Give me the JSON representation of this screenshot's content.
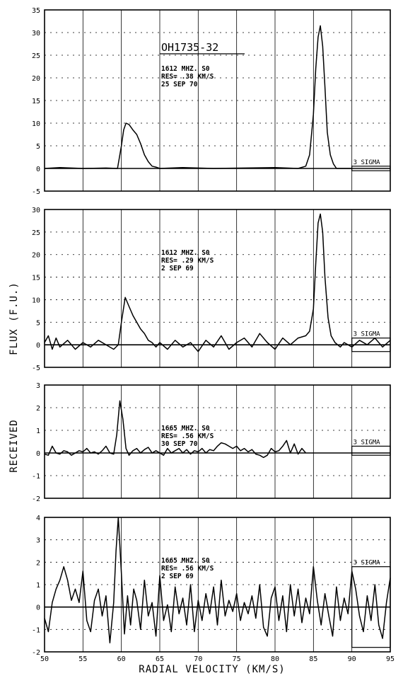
{
  "figure": {
    "xlabel": "RADIAL VELOCITY (KM/S)",
    "ylabel_parts": [
      "RECEIVED",
      "FLUX (F.U.)"
    ]
  },
  "chart_data": [
    {
      "type": "line",
      "source_label": "OH1735-32",
      "annotation_lines": [
        "1612 MHZ. S0",
        "RES= .38 KM/S",
        "25 SEP 70"
      ],
      "sigma_label": "3 SIGMA",
      "sigma_range": [
        -0.5,
        0.5
      ],
      "xlim": [
        50,
        95
      ],
      "ylim": [
        -5,
        35
      ],
      "xticks": [
        50,
        55,
        60,
        65,
        70,
        75,
        80,
        85,
        90,
        95
      ],
      "yticks": [
        -5,
        0,
        5,
        10,
        15,
        20,
        25,
        30,
        35
      ],
      "series": [
        {
          "x": [
            50,
            52,
            55,
            58,
            59.5,
            60,
            60.3,
            60.6,
            61,
            61.5,
            62,
            62.5,
            63,
            63.5,
            64,
            64.5,
            65,
            68,
            72,
            76,
            80,
            83,
            84,
            84.5,
            85,
            85.3,
            85.6,
            85.9,
            86.2,
            86.5,
            86.8,
            87.2,
            87.6,
            88,
            89,
            90
          ],
          "y": [
            0,
            0.2,
            0,
            0.1,
            0,
            5,
            8.5,
            10,
            9.7,
            8.5,
            7.5,
            5.5,
            3,
            1.5,
            0.5,
            0.3,
            0,
            0.2,
            0,
            0.1,
            0.2,
            0,
            0.5,
            3,
            12,
            22,
            29,
            31.5,
            27,
            18,
            8,
            3,
            1,
            0,
            0,
            0
          ]
        }
      ]
    },
    {
      "type": "line",
      "annotation_lines": [
        "1612 MHZ. S0",
        "RES= .29 KM/S",
        "2 SEP 69"
      ],
      "sigma_label": "3 SIGMA",
      "sigma_range": [
        -1.5,
        1.5
      ],
      "xlim": [
        50,
        95
      ],
      "ylim": [
        -5,
        30
      ],
      "xticks": [
        50,
        55,
        60,
        65,
        70,
        75,
        80,
        85,
        90,
        95
      ],
      "yticks": [
        -5,
        0,
        5,
        10,
        15,
        20,
        25,
        30
      ],
      "series": [
        {
          "x": [
            50,
            50.5,
            51,
            51.5,
            52,
            53,
            54,
            55,
            56,
            57,
            58,
            59,
            59.6,
            60,
            60.5,
            61,
            61.5,
            62,
            62.5,
            63,
            63.5,
            64,
            64.5,
            65,
            66,
            67,
            68,
            69,
            70,
            71,
            72,
            73,
            74,
            75,
            76,
            77,
            78,
            79,
            80,
            81,
            82,
            83,
            84,
            84.5,
            85,
            85.3,
            85.6,
            85.9,
            86.2,
            86.5,
            86.9,
            87.3,
            87.8,
            88.5,
            89,
            90,
            91,
            92,
            93,
            94,
            95
          ],
          "y": [
            0.5,
            2,
            -1,
            1.5,
            -0.5,
            1,
            -1,
            0.5,
            -0.5,
            1,
            0,
            -1,
            0,
            5,
            10.5,
            8.5,
            6.5,
            5,
            3.5,
            2.5,
            1,
            0.5,
            -0.5,
            0.5,
            -1,
            1,
            -0.5,
            0.5,
            -1.5,
            1,
            -0.5,
            2,
            -1,
            0.5,
            1.5,
            -0.5,
            2.5,
            0.5,
            -1,
            1.5,
            0,
            1.5,
            2,
            3,
            8,
            18,
            27,
            29,
            25,
            15,
            6,
            2,
            0.5,
            -0.5,
            0.5,
            -0.5,
            1,
            0,
            1.5,
            -0.5,
            1
          ]
        }
      ]
    },
    {
      "type": "line",
      "annotation_lines": [
        "1665 MHZ. S0",
        "RES= .56 KM/S",
        "30 SEP 70"
      ],
      "sigma_label": "3 SIGMA",
      "sigma_range": [
        -0.1,
        0.3
      ],
      "xlim": [
        50,
        95
      ],
      "ylim": [
        -2,
        3
      ],
      "xticks": [
        50,
        55,
        60,
        65,
        70,
        75,
        80,
        85,
        90,
        95
      ],
      "yticks": [
        -2,
        -1,
        0,
        1,
        2,
        3
      ],
      "series": [
        {
          "x": [
            50,
            50.5,
            51,
            51.5,
            52,
            52.5,
            53,
            53.5,
            54,
            54.5,
            55,
            55.5,
            56,
            56.5,
            57,
            57.5,
            58,
            58.5,
            59,
            59.4,
            59.8,
            60.2,
            60.6,
            61,
            61.5,
            62,
            62.5,
            63,
            63.5,
            64,
            64.5,
            65,
            65.5,
            66,
            66.5,
            67,
            67.5,
            68,
            68.5,
            69,
            69.5,
            70,
            70.5,
            71,
            71.5,
            72,
            72.5,
            73,
            73.5,
            74,
            74.5,
            75,
            75.5,
            76,
            76.5,
            77,
            77.5,
            78,
            78.5,
            79,
            79.5,
            80,
            80.5,
            81,
            81.5,
            82,
            82.5,
            83,
            83.5,
            84
          ],
          "y": [
            -0.05,
            -0.1,
            0.3,
            0,
            -0.05,
            0.1,
            0.05,
            -0.1,
            0,
            0.1,
            0.05,
            0.2,
            0,
            0.05,
            -0.05,
            0.1,
            0.3,
            0,
            -0.05,
            0.8,
            2.3,
            1.5,
            0.2,
            -0.1,
            0.1,
            0.2,
            0,
            0.15,
            0.25,
            0,
            0.1,
            0,
            -0.1,
            0.2,
            0,
            0.1,
            0.2,
            0,
            0.15,
            -0.05,
            0.1,
            0.05,
            0.2,
            0,
            0.15,
            0.1,
            0.3,
            0.45,
            0.4,
            0.3,
            0.2,
            0.3,
            0.1,
            0.2,
            0.05,
            0.15,
            -0.05,
            -0.1,
            -0.2,
            -0.1,
            0.2,
            0.05,
            0.1,
            0.3,
            0.55,
            0,
            0.4,
            -0.05,
            0.2,
            0
          ]
        }
      ]
    },
    {
      "type": "line",
      "annotation_lines": [
        "1665 MHZ. S0",
        "RES= .56 KM/S",
        "2 SEP 69"
      ],
      "sigma_label": "3 SIGMA",
      "sigma_range": [
        -1.8,
        1.8
      ],
      "xlim": [
        50,
        95
      ],
      "ylim": [
        -2,
        4
      ],
      "xticks": [
        50,
        55,
        60,
        65,
        70,
        75,
        80,
        85,
        90,
        95
      ],
      "yticks": [
        -2,
        -1,
        0,
        1,
        2,
        3,
        4
      ],
      "series": [
        {
          "x": [
            50,
            50.5,
            51,
            51.5,
            52,
            52.5,
            53,
            53.5,
            54,
            54.5,
            55,
            55.5,
            56,
            56.5,
            57,
            57.5,
            58,
            58.5,
            59,
            59.3,
            59.6,
            60,
            60.4,
            60.8,
            61.2,
            61.6,
            62,
            62.5,
            63,
            63.5,
            64,
            64.5,
            65,
            65.5,
            66,
            66.5,
            67,
            67.5,
            68,
            68.5,
            69,
            69.5,
            70,
            70.5,
            71,
            71.5,
            72,
            72.5,
            73,
            73.5,
            74,
            74.5,
            75,
            75.5,
            76,
            76.5,
            77,
            77.5,
            78,
            78.5,
            79,
            79.5,
            80,
            80.5,
            81,
            81.5,
            82,
            82.5,
            83,
            83.5,
            84,
            84.5,
            85,
            85.5,
            86,
            86.5,
            87,
            87.5,
            88,
            88.5,
            89,
            89.5,
            90,
            90.5,
            91,
            91.5,
            92,
            92.5,
            93,
            93.5,
            94,
            94.5,
            95
          ],
          "y": [
            -0.5,
            -1.1,
            0.2,
            0.8,
            1.2,
            1.8,
            1.2,
            0.3,
            0.8,
            0.2,
            1.6,
            -0.6,
            -1.1,
            0.3,
            0.8,
            -0.4,
            0.5,
            -1.6,
            0.2,
            2.5,
            4,
            1.5,
            -1.2,
            0.5,
            -0.8,
            0.8,
            0.3,
            -1,
            1.2,
            -0.4,
            0.2,
            -1.3,
            1.4,
            -0.6,
            0.1,
            -1.1,
            0.9,
            -0.3,
            0.4,
            -0.8,
            1,
            -1.1,
            0.3,
            -0.6,
            0.6,
            -0.3,
            0.9,
            -0.8,
            1.2,
            -0.4,
            0.3,
            -0.2,
            0.6,
            -0.6,
            0.2,
            -0.3,
            0.5,
            -0.5,
            1,
            -0.9,
            -1.3,
            0.4,
            0.9,
            -0.6,
            0.5,
            -1.1,
            1,
            -0.4,
            0.8,
            -0.7,
            0.4,
            -0.3,
            1.8,
            0.3,
            -0.8,
            0.6,
            -0.4,
            -1.3,
            0.9,
            -0.6,
            0.4,
            -0.3,
            1.6,
            0.8,
            -0.4,
            -1.1,
            0.5,
            -0.6,
            1,
            -0.8,
            -1.4,
            0.2,
            1.3
          ]
        }
      ]
    }
  ]
}
